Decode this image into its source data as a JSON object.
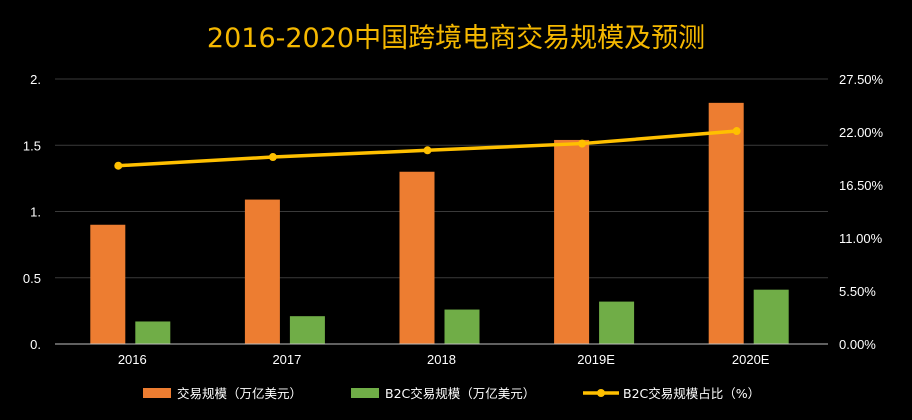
{
  "chart_data": {
    "type": "bar",
    "title": "2016-2020中国跨境电商交易规模及预测",
    "categories": [
      "2016",
      "2017",
      "2018",
      "2019E",
      "2020E"
    ],
    "series": [
      {
        "name": "交易规模（万亿美元）",
        "type": "bar",
        "axis": "left",
        "values": [
          0.9,
          1.09,
          1.3,
          1.54,
          1.82
        ]
      },
      {
        "name": "B2C交易规模（万亿美元）",
        "type": "bar",
        "axis": "left",
        "values": [
          0.17,
          0.21,
          0.26,
          0.32,
          0.41
        ]
      },
      {
        "name": "B2C交易规模占比（%）",
        "type": "line",
        "axis": "right",
        "values": [
          18.5,
          19.4,
          20.1,
          20.8,
          22.1
        ]
      }
    ],
    "y_left": {
      "ylim": [
        0,
        2
      ],
      "ticks": [
        0,
        0.5,
        1,
        1.5,
        2
      ],
      "tick_labels": [
        "0.",
        "0.5",
        "1.",
        "1.5",
        "2."
      ]
    },
    "y_right": {
      "ylim": [
        0,
        27.5
      ],
      "ticks": [
        0,
        5.5,
        11,
        16.5,
        22,
        27.5
      ],
      "tick_labels": [
        "0.00%",
        "5.50%",
        "11.00%",
        "16.50%",
        "22.00%",
        "27.50%"
      ]
    },
    "grid": true,
    "legend": "bottom",
    "colors": {
      "bar1": "#ED7D31",
      "bar2": "#70AD47",
      "line": "#FFC000",
      "title": "#F5B800",
      "grid": "#3A3A3A",
      "axis": "#BFBFBF"
    }
  }
}
